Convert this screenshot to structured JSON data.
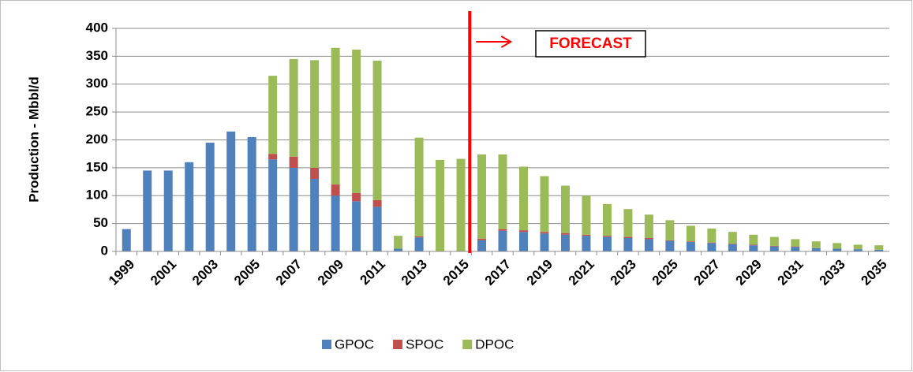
{
  "chart_data": {
    "type": "stacked_bar",
    "y_label": "Production - Mbbl/d",
    "annotation": "FORECAST",
    "categories": [
      "1999",
      null,
      "2001",
      null,
      "2003",
      null,
      "2005",
      null,
      "2007",
      null,
      "2009",
      null,
      "2011",
      null,
      "2013",
      null,
      "2015",
      null,
      "2017",
      null,
      "2019",
      null,
      "2021",
      null,
      "2023",
      null,
      "2025",
      null,
      "2027",
      null,
      "2029",
      null,
      "2031",
      null,
      "2033",
      null,
      "2035"
    ],
    "series": [
      {
        "name": "GPOC",
        "color": "#4f81bd",
        "values": [
          40,
          145,
          145,
          160,
          195,
          215,
          205,
          165,
          150,
          130,
          100,
          90,
          80,
          5,
          25,
          0,
          0,
          20,
          37,
          35,
          32,
          30,
          28,
          26,
          24,
          22,
          19,
          17,
          15,
          13,
          11,
          9,
          8,
          6,
          5,
          4,
          3
        ]
      },
      {
        "name": "SPOC",
        "color": "#c0504d",
        "values": [
          0,
          0,
          0,
          0,
          0,
          0,
          0,
          10,
          20,
          20,
          20,
          15,
          12,
          0,
          2,
          0,
          0,
          3,
          3,
          3,
          3,
          3,
          2,
          2,
          2,
          2,
          1,
          1,
          1,
          1,
          1,
          1,
          1,
          0,
          0,
          0,
          0
        ]
      },
      {
        "name": "DPOC",
        "color": "#9bbb59",
        "values": [
          0,
          0,
          0,
          0,
          0,
          0,
          0,
          140,
          175,
          193,
          245,
          257,
          250,
          23,
          177,
          164,
          166,
          151,
          134,
          114,
          100,
          85,
          70,
          57,
          50,
          42,
          36,
          28,
          25,
          21,
          18,
          16,
          13,
          12,
          10,
          8,
          8
        ]
      }
    ],
    "ylim": [
      0,
      400
    ],
    "yticks": [
      0,
      50,
      100,
      150,
      200,
      250,
      300,
      350,
      400
    ],
    "grid": true
  }
}
